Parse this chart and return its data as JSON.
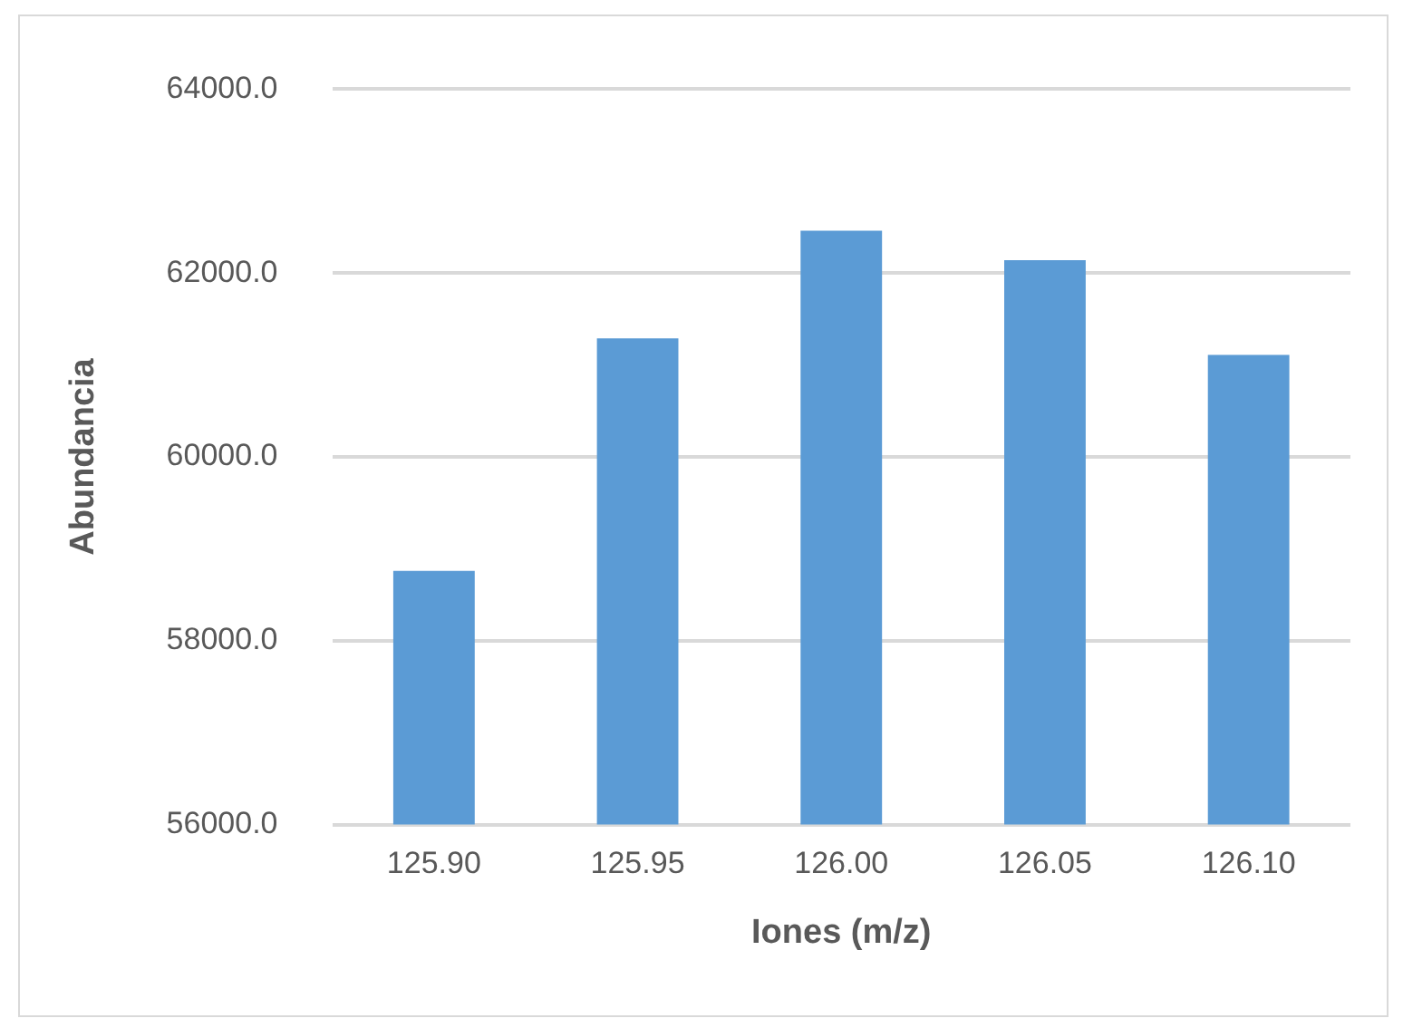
{
  "chart_data": {
    "type": "bar",
    "xlabel": "Iones (m/z)",
    "ylabel": "Abundancia",
    "categories": [
      "125.90",
      "125.95",
      "126.00",
      "126.05",
      "126.10"
    ],
    "values": [
      58760,
      61290,
      62460,
      62140,
      61110
    ],
    "color": "#5b9bd5",
    "ylim": [
      56000,
      64000
    ],
    "yticks": [
      {
        "value": 56000,
        "label": "56000.0"
      },
      {
        "value": 58000,
        "label": "58000.0"
      },
      {
        "value": 60000,
        "label": "60000.0"
      },
      {
        "value": 62000,
        "label": "62000.0"
      },
      {
        "value": 64000,
        "label": "64000.0"
      }
    ],
    "grid": "y",
    "legend": false
  }
}
